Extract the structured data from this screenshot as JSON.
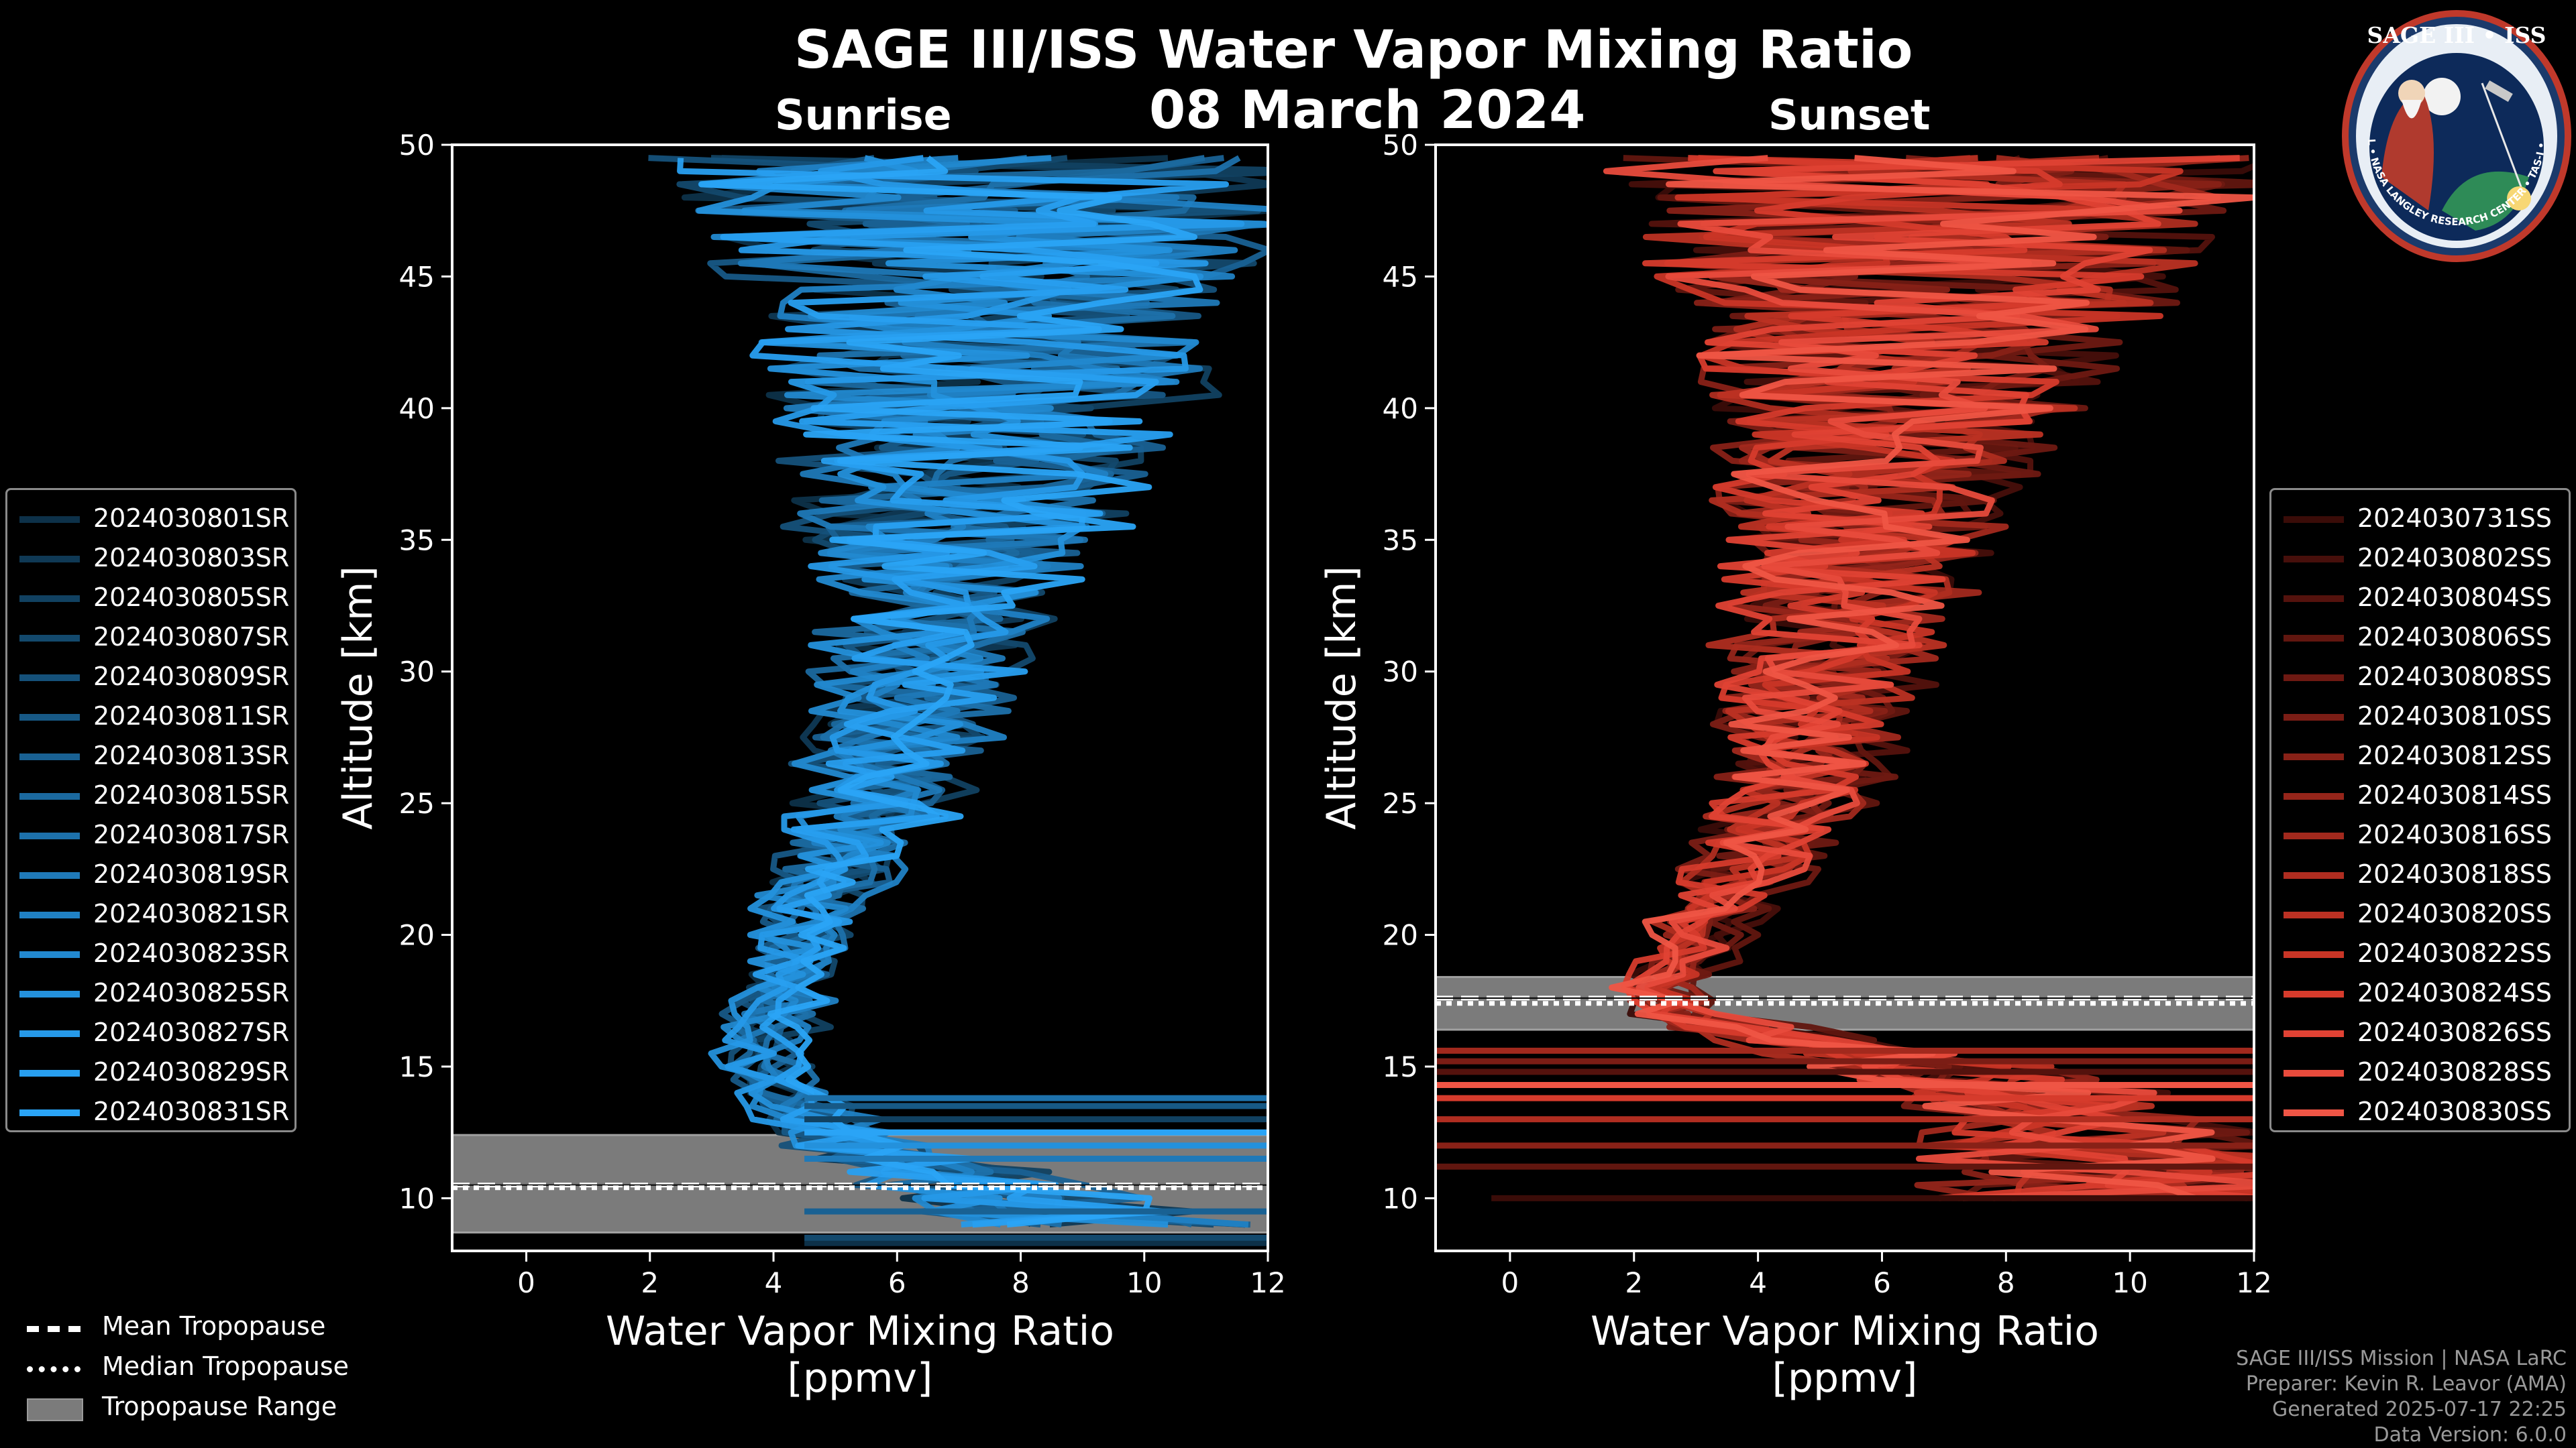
{
  "title": "SAGE III/ISS Water Vapor Mixing Ratio",
  "date": "08 March 2024",
  "chart_data": [
    {
      "type": "line",
      "panel": "Sunrise",
      "title": "Sunrise",
      "xlabel": "Water Vapor Mixing Ratio [ppmv]",
      "ylabel": "Altitude [km]",
      "xlim": [
        -1.2,
        12
      ],
      "ylim": [
        8,
        50
      ],
      "xticks": [
        0,
        2,
        4,
        6,
        8,
        10,
        12
      ],
      "yticks": [
        10,
        15,
        20,
        25,
        30,
        35,
        40,
        45,
        50
      ],
      "legend_location": "left",
      "series_names": [
        "2024030801SR",
        "2024030803SR",
        "2024030805SR",
        "2024030807SR",
        "2024030809SR",
        "2024030811SR",
        "2024030813SR",
        "2024030815SR",
        "2024030817SR",
        "2024030819SR",
        "2024030821SR",
        "2024030823SR",
        "2024030825SR",
        "2024030827SR",
        "2024030829SR",
        "2024030831SR"
      ],
      "series_colors": [
        "#0d3149",
        "#0f3955",
        "#114161",
        "#13496d",
        "#15517a",
        "#175986",
        "#196193",
        "#1b699f",
        "#1d71ab",
        "#1f79b8",
        "#2081c4",
        "#2289d0",
        "#2491dc",
        "#2699e8",
        "#289ff0",
        "#2aa4f6"
      ],
      "profile_shape": {
        "altitude_km": [
          9,
          10,
          11,
          12,
          13,
          14,
          15,
          16,
          17,
          18,
          19,
          20,
          21,
          22,
          23,
          24,
          25,
          26,
          27,
          28,
          29,
          30,
          31,
          32,
          33,
          34,
          35,
          36,
          37,
          38,
          39,
          40,
          41,
          42,
          43,
          44,
          45,
          46,
          47,
          48,
          49
        ],
        "mean_ppmv": [
          9.5,
          8.0,
          6.6,
          5.4,
          4.6,
          4.1,
          3.9,
          3.9,
          4.0,
          4.2,
          4.4,
          4.6,
          4.8,
          5.0,
          5.2,
          5.4,
          5.6,
          5.8,
          6.0,
          6.1,
          6.3,
          6.4,
          6.5,
          6.6,
          6.7,
          6.8,
          6.9,
          7.0,
          7.1,
          7.2,
          7.3,
          7.3,
          7.4,
          7.4,
          7.5,
          7.5,
          7.5,
          7.5,
          7.5,
          7.5,
          7.5
        ],
        "spread_ppmv": [
          2.5,
          2.0,
          1.5,
          1.0,
          0.8,
          0.6,
          0.6,
          0.6,
          0.6,
          0.6,
          0.6,
          0.7,
          0.8,
          0.9,
          1.0,
          1.1,
          1.2,
          1.3,
          1.4,
          1.5,
          1.6,
          1.7,
          1.8,
          1.9,
          2.0,
          2.2,
          2.4,
          2.6,
          2.8,
          3.0,
          3.2,
          3.4,
          3.6,
          3.8,
          4.0,
          4.2,
          4.4,
          4.6,
          4.8,
          5.0,
          5.2
        ]
      },
      "tropopause": {
        "mean_km": 10.5,
        "median_km": 10.4,
        "range_km": [
          8.7,
          12.4
        ]
      }
    },
    {
      "type": "line",
      "panel": "Sunset",
      "title": "Sunset",
      "xlabel": "Water Vapor Mixing Ratio [ppmv]",
      "ylabel": "Altitude [km]",
      "xlim": [
        -1.2,
        12
      ],
      "ylim": [
        8,
        50
      ],
      "xticks": [
        0,
        2,
        4,
        6,
        8,
        10,
        12
      ],
      "yticks": [
        10,
        15,
        20,
        25,
        30,
        35,
        40,
        45,
        50
      ],
      "legend_location": "right",
      "series_names": [
        "2024030731SS",
        "2024030802SS",
        "2024030804SS",
        "2024030806SS",
        "2024030808SS",
        "2024030810SS",
        "2024030812SS",
        "2024030814SS",
        "2024030816SS",
        "2024030818SS",
        "2024030820SS",
        "2024030822SS",
        "2024030824SS",
        "2024030826SS",
        "2024030828SS",
        "2024030830SS"
      ],
      "series_colors": [
        "#3a0c08",
        "#470f0b",
        "#54120d",
        "#61160f",
        "#6e1912",
        "#7b1d15",
        "#882117",
        "#95251a",
        "#a2291d",
        "#af2d20",
        "#bc3123",
        "#c93526",
        "#d63b2c",
        "#e04234",
        "#e84b3c",
        "#ef5545"
      ],
      "profile_shape": {
        "altitude_km": [
          10,
          11,
          12,
          13,
          14,
          15,
          16,
          17,
          18,
          19,
          20,
          21,
          22,
          23,
          24,
          25,
          26,
          27,
          28,
          29,
          30,
          31,
          32,
          33,
          34,
          35,
          36,
          37,
          38,
          39,
          40,
          41,
          42,
          43,
          44,
          45,
          46,
          47,
          48,
          49
        ],
        "mean_ppmv": [
          10.5,
          10.0,
          9.5,
          9.0,
          8.5,
          7.0,
          4.5,
          2.7,
          2.5,
          2.8,
          3.1,
          3.4,
          3.7,
          4.0,
          4.3,
          4.5,
          4.7,
          4.9,
          5.0,
          5.1,
          5.2,
          5.3,
          5.4,
          5.5,
          5.6,
          5.7,
          5.8,
          5.9,
          6.0,
          6.1,
          6.2,
          6.3,
          6.4,
          6.5,
          6.6,
          6.7,
          6.8,
          6.9,
          7.0,
          7.1
        ],
        "spread_ppmv": [
          4.0,
          3.5,
          3.0,
          2.5,
          2.0,
          1.8,
          1.2,
          0.6,
          0.5,
          0.6,
          0.7,
          0.8,
          0.9,
          1.0,
          1.1,
          1.2,
          1.3,
          1.4,
          1.5,
          1.6,
          1.7,
          1.8,
          1.9,
          2.0,
          2.1,
          2.2,
          2.3,
          2.4,
          2.6,
          2.8,
          3.0,
          3.3,
          3.6,
          3.9,
          4.2,
          4.5,
          4.8,
          5.1,
          5.4,
          5.7
        ]
      },
      "tropopause": {
        "mean_km": 17.6,
        "median_km": 17.4,
        "range_km": [
          16.4,
          18.4
        ]
      }
    }
  ],
  "tropopause_legend": {
    "mean": "Mean Tropopause",
    "median": "Median Tropopause",
    "range": "Tropopause Range"
  },
  "footer": {
    "mission": "SAGE III/ISS Mission | NASA LaRC",
    "preparer": "Preparer: Kevin R. Leavor (AMA)",
    "generated": "Generated 2025-07-17 22:25",
    "version": "Data Version: 6.0.0"
  },
  "logo": {
    "text": "SAGE III • ISS",
    "ring_text": "BALL • NASA LANGLEY RESEARCH CENTER • TAS-I • ESA"
  },
  "colors": {
    "sunrise": "#2a9fe0",
    "sunset": "#ef5545",
    "tropopause_band": "#7b7b7b",
    "axes": "#ffffff"
  }
}
